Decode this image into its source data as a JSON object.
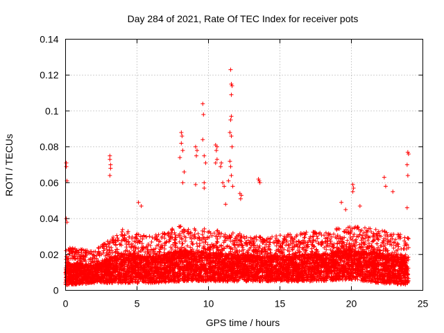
{
  "chart_data": {
    "type": "scatter",
    "title": "Day 284 of 2021, Rate Of TEC Index for receiver pots",
    "xlabel": "GPS time / hours",
    "ylabel": "ROTI / TECUs",
    "xlim": [
      0,
      25
    ],
    "ylim": [
      0,
      0.14
    ],
    "xticks": [
      0,
      5,
      10,
      15,
      20,
      25
    ],
    "yticks": [
      0,
      0.02,
      0.04,
      0.06,
      0.08,
      0.1,
      0.12,
      0.14
    ],
    "xtick_labels": [
      "0",
      "5",
      "10",
      "15",
      "20",
      "25"
    ],
    "ytick_labels": [
      "0",
      "0.02",
      "0.04",
      "0.06",
      "0.08",
      "0.1",
      "0.12",
      "0.14"
    ],
    "grid": true,
    "marker": "+",
    "color": "#ff0000",
    "series": [
      {
        "name": "ROTI",
        "x_range": [
          0,
          24
        ],
        "notable_points": [
          {
            "x": 0.05,
            "y": 0.071
          },
          {
            "x": 0.05,
            "y": 0.069
          },
          {
            "x": 0.1,
            "y": 0.061
          },
          {
            "x": 0.05,
            "y": 0.04
          },
          {
            "x": 0.1,
            "y": 0.038
          },
          {
            "x": 3.1,
            "y": 0.075
          },
          {
            "x": 3.1,
            "y": 0.073
          },
          {
            "x": 3.15,
            "y": 0.07
          },
          {
            "x": 3.15,
            "y": 0.068
          },
          {
            "x": 3.1,
            "y": 0.064
          },
          {
            "x": 5.1,
            "y": 0.049
          },
          {
            "x": 5.3,
            "y": 0.047
          },
          {
            "x": 8.1,
            "y": 0.088
          },
          {
            "x": 8.15,
            "y": 0.086
          },
          {
            "x": 8.1,
            "y": 0.082
          },
          {
            "x": 8.2,
            "y": 0.078
          },
          {
            "x": 8.0,
            "y": 0.074
          },
          {
            "x": 8.3,
            "y": 0.066
          },
          {
            "x": 8.2,
            "y": 0.06
          },
          {
            "x": 9.6,
            "y": 0.104
          },
          {
            "x": 9.65,
            "y": 0.098
          },
          {
            "x": 9.6,
            "y": 0.084
          },
          {
            "x": 9.1,
            "y": 0.08
          },
          {
            "x": 9.2,
            "y": 0.078
          },
          {
            "x": 9.15,
            "y": 0.075
          },
          {
            "x": 9.7,
            "y": 0.075
          },
          {
            "x": 9.8,
            "y": 0.071
          },
          {
            "x": 9.7,
            "y": 0.06
          },
          {
            "x": 9.1,
            "y": 0.059
          },
          {
            "x": 9.7,
            "y": 0.057
          },
          {
            "x": 10.5,
            "y": 0.081
          },
          {
            "x": 10.6,
            "y": 0.08
          },
          {
            "x": 10.55,
            "y": 0.078
          },
          {
            "x": 10.6,
            "y": 0.073
          },
          {
            "x": 10.5,
            "y": 0.071
          },
          {
            "x": 10.9,
            "y": 0.071
          },
          {
            "x": 10.85,
            "y": 0.069
          },
          {
            "x": 11.0,
            "y": 0.06
          },
          {
            "x": 11.1,
            "y": 0.058
          },
          {
            "x": 11.2,
            "y": 0.048
          },
          {
            "x": 11.55,
            "y": 0.123
          },
          {
            "x": 11.6,
            "y": 0.115
          },
          {
            "x": 11.65,
            "y": 0.114
          },
          {
            "x": 11.6,
            "y": 0.109
          },
          {
            "x": 11.6,
            "y": 0.097
          },
          {
            "x": 11.55,
            "y": 0.095
          },
          {
            "x": 11.5,
            "y": 0.088
          },
          {
            "x": 11.6,
            "y": 0.086
          },
          {
            "x": 11.65,
            "y": 0.08
          },
          {
            "x": 11.5,
            "y": 0.072
          },
          {
            "x": 11.55,
            "y": 0.069
          },
          {
            "x": 11.6,
            "y": 0.064
          },
          {
            "x": 11.4,
            "y": 0.061
          },
          {
            "x": 11.7,
            "y": 0.058
          },
          {
            "x": 12.2,
            "y": 0.054
          },
          {
            "x": 12.3,
            "y": 0.053
          },
          {
            "x": 12.25,
            "y": 0.051
          },
          {
            "x": 13.5,
            "y": 0.062
          },
          {
            "x": 13.55,
            "y": 0.061
          },
          {
            "x": 13.6,
            "y": 0.06
          },
          {
            "x": 20.1,
            "y": 0.059
          },
          {
            "x": 20.15,
            "y": 0.057
          },
          {
            "x": 20.1,
            "y": 0.055
          },
          {
            "x": 22.3,
            "y": 0.063
          },
          {
            "x": 22.4,
            "y": 0.058
          },
          {
            "x": 22.9,
            "y": 0.055
          },
          {
            "x": 23.95,
            "y": 0.077
          },
          {
            "x": 24.0,
            "y": 0.076
          },
          {
            "x": 23.9,
            "y": 0.07
          },
          {
            "x": 23.95,
            "y": 0.064
          },
          {
            "x": 23.9,
            "y": 0.046
          },
          {
            "x": 19.3,
            "y": 0.049
          },
          {
            "x": 19.6,
            "y": 0.045
          },
          {
            "x": 20.6,
            "y": 0.047
          }
        ],
        "baseline_envelope": [
          {
            "x": 0,
            "y_min": 0.003,
            "y_max": 0.024
          },
          {
            "x": 2,
            "y_min": 0.004,
            "y_max": 0.022
          },
          {
            "x": 4,
            "y_min": 0.004,
            "y_max": 0.034
          },
          {
            "x": 6,
            "y_min": 0.004,
            "y_max": 0.03
          },
          {
            "x": 8,
            "y_min": 0.005,
            "y_max": 0.036
          },
          {
            "x": 10,
            "y_min": 0.005,
            "y_max": 0.034
          },
          {
            "x": 12,
            "y_min": 0.005,
            "y_max": 0.032
          },
          {
            "x": 14,
            "y_min": 0.005,
            "y_max": 0.03
          },
          {
            "x": 16,
            "y_min": 0.005,
            "y_max": 0.032
          },
          {
            "x": 18,
            "y_min": 0.005,
            "y_max": 0.033
          },
          {
            "x": 20,
            "y_min": 0.006,
            "y_max": 0.036
          },
          {
            "x": 22,
            "y_min": 0.004,
            "y_max": 0.034
          },
          {
            "x": 24,
            "y_min": 0.003,
            "y_max": 0.03
          }
        ]
      }
    ]
  }
}
